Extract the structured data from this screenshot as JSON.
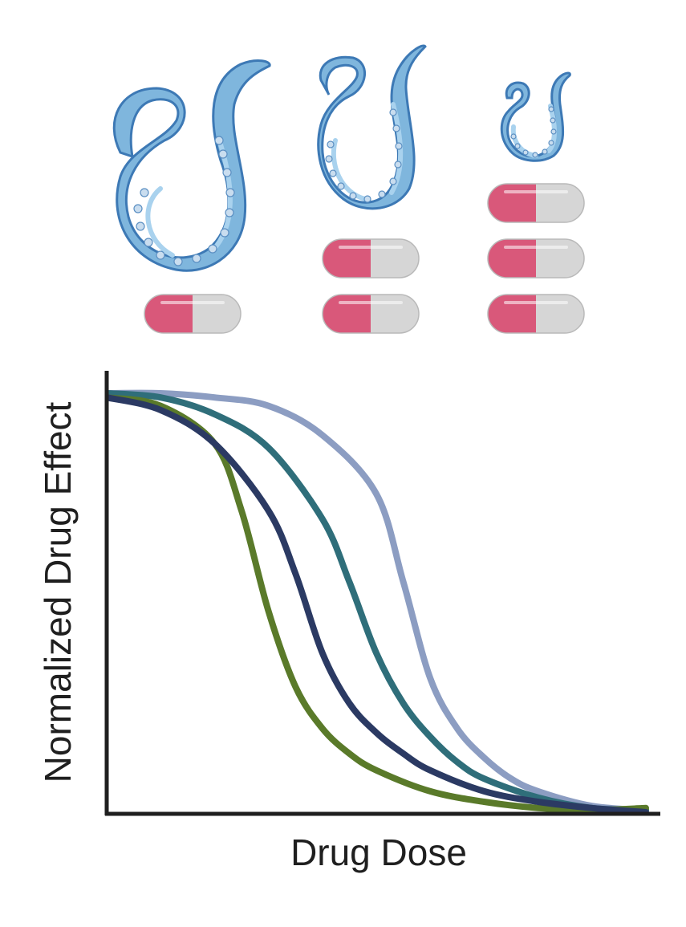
{
  "chart_data": {
    "type": "line",
    "title": "",
    "xlabel": "Drug Dose",
    "ylabel": "Normalized Drug Effect",
    "xlim": [
      0,
      1
    ],
    "ylim": [
      0,
      1
    ],
    "grid": false,
    "legend": "none",
    "series": [
      {
        "color": "#5a7a2a",
        "x": [
          0.0,
          0.1,
          0.2,
          0.25,
          0.3,
          0.35,
          0.4,
          0.45,
          0.5,
          0.6,
          0.7,
          0.8,
          0.9,
          1.0
        ],
        "values": [
          0.99,
          0.97,
          0.88,
          0.72,
          0.48,
          0.3,
          0.2,
          0.14,
          0.1,
          0.05,
          0.025,
          0.01,
          0.005,
          0.01
        ]
      },
      {
        "color": "#2b3a63",
        "x": [
          0.0,
          0.1,
          0.2,
          0.3,
          0.35,
          0.4,
          0.45,
          0.5,
          0.55,
          0.6,
          0.7,
          0.8,
          0.9,
          1.0
        ],
        "values": [
          0.99,
          0.96,
          0.88,
          0.72,
          0.57,
          0.38,
          0.26,
          0.19,
          0.14,
          0.1,
          0.05,
          0.025,
          0.01,
          0.0
        ]
      },
      {
        "color": "#2f6e7a",
        "x": [
          0.0,
          0.1,
          0.2,
          0.3,
          0.4,
          0.45,
          0.5,
          0.55,
          0.6,
          0.65,
          0.7,
          0.8,
          0.9,
          1.0
        ],
        "values": [
          1.0,
          0.99,
          0.95,
          0.87,
          0.7,
          0.55,
          0.38,
          0.26,
          0.18,
          0.12,
          0.08,
          0.035,
          0.01,
          0.005
        ]
      },
      {
        "color": "#8c9dc2",
        "x": [
          0.0,
          0.1,
          0.2,
          0.3,
          0.4,
          0.5,
          0.55,
          0.6,
          0.65,
          0.7,
          0.75,
          0.8,
          0.9,
          1.0
        ],
        "values": [
          1.0,
          1.0,
          0.99,
          0.97,
          0.9,
          0.76,
          0.55,
          0.32,
          0.2,
          0.13,
          0.08,
          0.05,
          0.015,
          0.005
        ]
      }
    ]
  },
  "illustration": {
    "groups": [
      {
        "worm": "large-worm-icon",
        "pills": 1
      },
      {
        "worm": "medium-worm-icon",
        "pills": 2
      },
      {
        "worm": "small-worm-icon",
        "pills": 3
      }
    ],
    "pill_colors": {
      "left": "#d9587a",
      "right": "#d6d6d6"
    },
    "worm_color": "#7fb6dd"
  }
}
